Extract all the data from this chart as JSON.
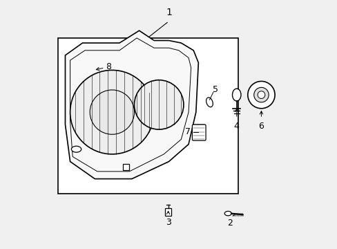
{
  "background_color": "#f0f0f0",
  "box_color": "#ffffff",
  "line_color": "#000000",
  "fig_width": 4.89,
  "fig_height": 3.6,
  "dpi": 100
}
